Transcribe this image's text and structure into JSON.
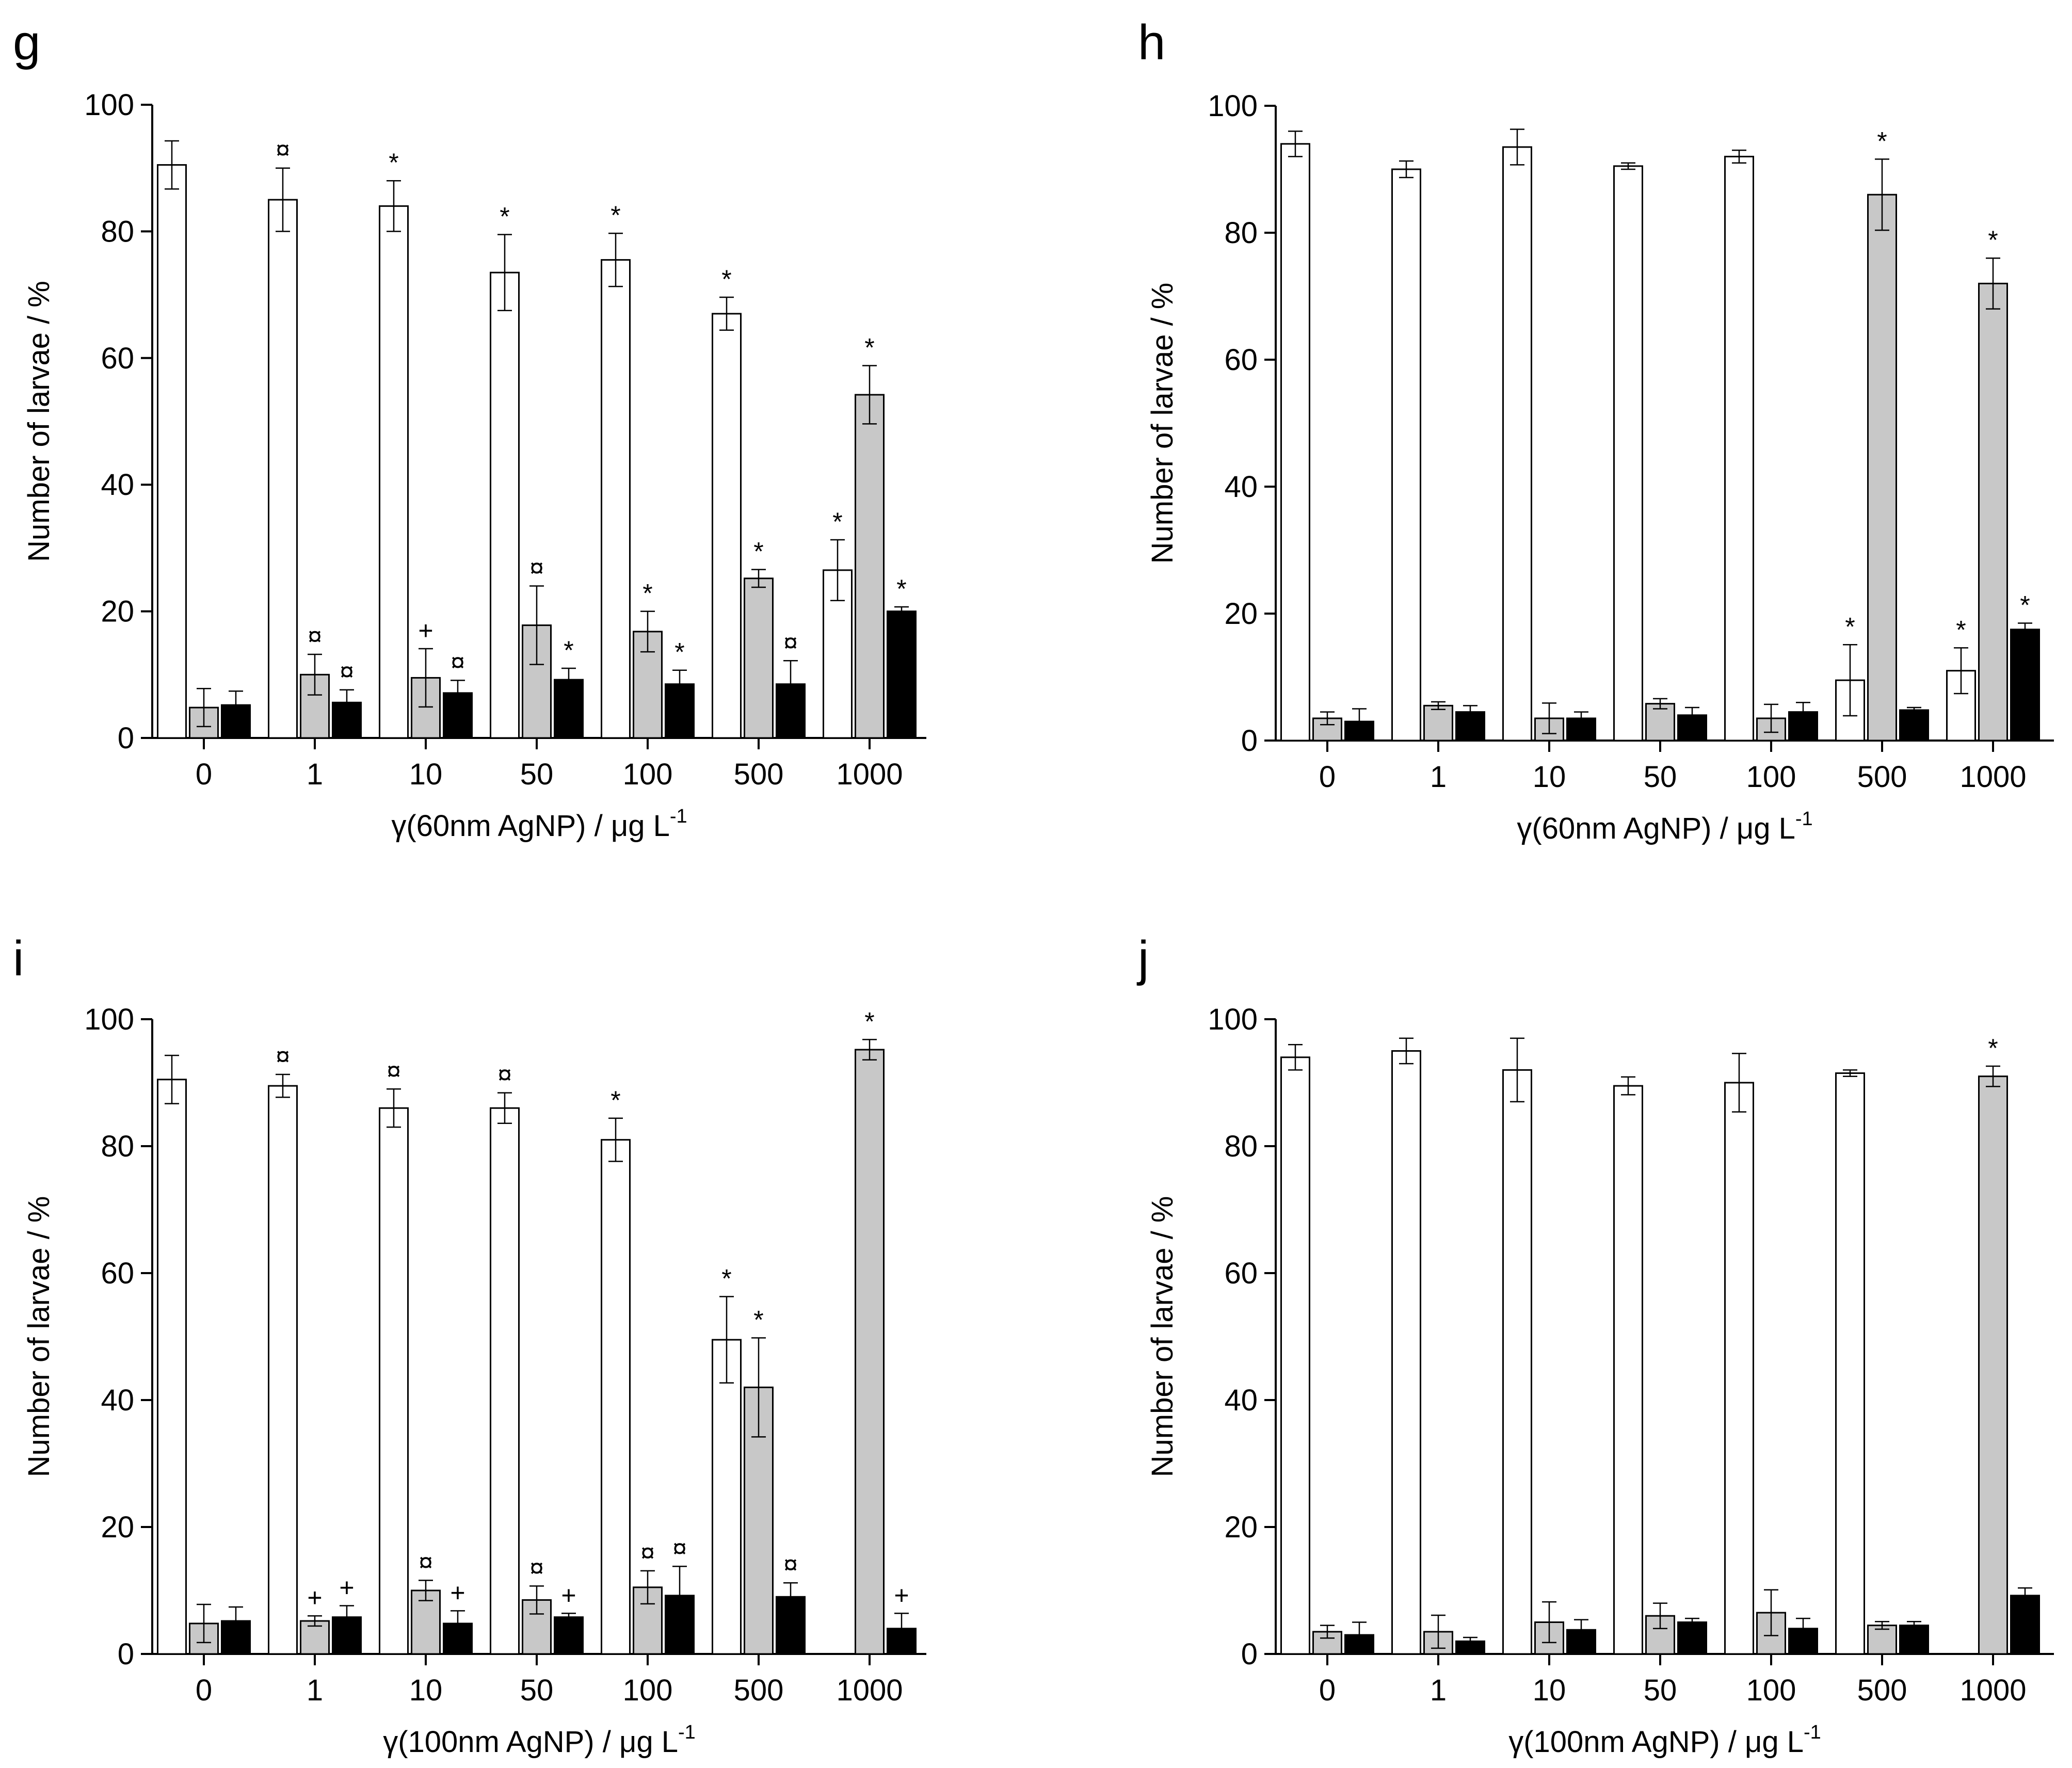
{
  "figure": {
    "background": "#ffffff"
  },
  "series_colors": {
    "white": "#ffffff",
    "gray": "#c8c8c8",
    "black": "#000000"
  },
  "chart_data": [
    {
      "panel": "g",
      "type": "bar",
      "categories": [
        "0",
        "1",
        "10",
        "50",
        "100",
        "500",
        "1000"
      ],
      "xlabel": "γ(60nm AgNP) / μg L",
      "xlabel_superscript": "-1",
      "ylabel": "Number of larvae / %",
      "ylim": [
        0,
        100
      ],
      "yticks": [
        "0",
        "20",
        "40",
        "60",
        "80",
        "100"
      ],
      "series": [
        {
          "name": "white",
          "values": [
            90.5,
            85,
            84,
            73.5,
            75.5,
            67,
            26.5
          ],
          "errors": [
            3.8,
            5,
            4,
            6,
            4.2,
            2.6,
            4.8
          ],
          "marks": [
            "",
            "¤",
            "*",
            "*",
            "*",
            "*",
            "*"
          ]
        },
        {
          "name": "gray",
          "values": [
            4.8,
            10,
            9.5,
            17.8,
            16.8,
            25.2,
            54.2
          ],
          "errors": [
            3,
            3.2,
            4.6,
            6.2,
            3.2,
            1.4,
            4.6
          ],
          "marks": [
            "",
            "¤",
            "+",
            "¤",
            "*",
            "*",
            "*"
          ]
        },
        {
          "name": "black",
          "values": [
            5.2,
            5.6,
            7.1,
            9.2,
            8.5,
            8.5,
            20
          ],
          "errors": [
            2.2,
            2,
            2,
            1.8,
            2.2,
            3.7,
            0.7
          ],
          "marks": [
            "",
            "¤",
            "¤",
            "*",
            "*",
            "¤",
            "*"
          ]
        }
      ]
    },
    {
      "panel": "h",
      "type": "bar",
      "categories": [
        "0",
        "1",
        "10",
        "50",
        "100",
        "500",
        "1000"
      ],
      "xlabel": "γ(60nm AgNP) / μg L",
      "xlabel_superscript": "-1",
      "ylabel": "Number of larvae / %",
      "ylim": [
        0,
        100
      ],
      "yticks": [
        "0",
        "20",
        "40",
        "60",
        "80",
        "100"
      ],
      "series": [
        {
          "name": "white",
          "values": [
            94,
            90,
            93.5,
            90.5,
            92,
            9.5,
            11
          ],
          "errors": [
            2,
            1.3,
            2.8,
            0.5,
            1,
            5.6,
            3.6
          ],
          "marks": [
            "",
            "",
            "",
            "",
            "",
            "*",
            "*"
          ]
        },
        {
          "name": "gray",
          "values": [
            3.5,
            5.5,
            3.5,
            5.8,
            3.5,
            86,
            72
          ],
          "errors": [
            1,
            0.6,
            2.4,
            0.8,
            2.2,
            5.6,
            4
          ],
          "marks": [
            "",
            "",
            "",
            "",
            "",
            "*",
            "*"
          ]
        },
        {
          "name": "black",
          "values": [
            3,
            4.5,
            3.5,
            4,
            4.5,
            4.8,
            17.5
          ],
          "errors": [
            2,
            1,
            1,
            1.2,
            1.5,
            0.4,
            1
          ],
          "marks": [
            "",
            "",
            "",
            "",
            "",
            "",
            "*"
          ]
        }
      ]
    },
    {
      "panel": "i",
      "type": "bar",
      "categories": [
        "0",
        "1",
        "10",
        "50",
        "100",
        "500",
        "1000"
      ],
      "xlabel": "γ(100nm AgNP) / μg L",
      "xlabel_superscript": "-1",
      "ylabel": "Number of larvae / %",
      "ylim": [
        0,
        100
      ],
      "yticks": [
        "0",
        "20",
        "40",
        "60",
        "80",
        "100"
      ],
      "series": [
        {
          "name": "white",
          "values": [
            90.5,
            89.5,
            86,
            86,
            81,
            49.5,
            0
          ],
          "errors": [
            3.8,
            1.8,
            3,
            2.4,
            3.4,
            6.8,
            0
          ],
          "marks": [
            "",
            "¤",
            "¤",
            "¤",
            "*",
            "*",
            ""
          ]
        },
        {
          "name": "gray",
          "values": [
            4.8,
            5.2,
            10,
            8.5,
            10.5,
            42,
            95.2
          ],
          "errors": [
            3,
            0.8,
            1.6,
            2.2,
            2.6,
            7.8,
            1.6
          ],
          "marks": [
            "",
            "+",
            "¤",
            "¤",
            "¤",
            "*",
            "*"
          ]
        },
        {
          "name": "black",
          "values": [
            5.2,
            5.8,
            4.8,
            5.8,
            9.2,
            9,
            4
          ],
          "errors": [
            2.2,
            1.8,
            2,
            0.6,
            4.6,
            2.2,
            2.4
          ],
          "marks": [
            "",
            "+",
            "+",
            "+",
            "¤",
            "¤",
            "+"
          ]
        }
      ]
    },
    {
      "panel": "j",
      "type": "bar",
      "categories": [
        "0",
        "1",
        "10",
        "50",
        "100",
        "500",
        "1000"
      ],
      "xlabel": "γ(100nm AgNP) / μg L",
      "xlabel_superscript": "-1",
      "ylabel": "Number of larvae / %",
      "ylim": [
        0,
        100
      ],
      "yticks": [
        "0",
        "20",
        "40",
        "60",
        "80",
        "100"
      ],
      "series": [
        {
          "name": "white",
          "values": [
            94,
            95,
            92,
            89.5,
            90,
            91.5,
            0
          ],
          "errors": [
            2,
            2,
            5,
            1.4,
            4.6,
            0.5,
            0
          ],
          "marks": [
            "",
            "",
            "",
            "",
            "",
            "",
            ""
          ]
        },
        {
          "name": "gray",
          "values": [
            3.5,
            3.5,
            5,
            6,
            6.5,
            4.5,
            91
          ],
          "errors": [
            1,
            2.6,
            3.2,
            2,
            3.6,
            0.6,
            1.6
          ],
          "marks": [
            "",
            "",
            "",
            "",
            "",
            "",
            "*"
          ]
        },
        {
          "name": "black",
          "values": [
            3,
            2,
            3.8,
            5,
            4,
            4.5,
            9.2
          ],
          "errors": [
            2,
            0.6,
            1.6,
            0.6,
            1.6,
            0.6,
            1.2
          ],
          "marks": [
            "",
            "",
            "",
            "",
            "",
            "",
            ""
          ]
        }
      ]
    }
  ]
}
